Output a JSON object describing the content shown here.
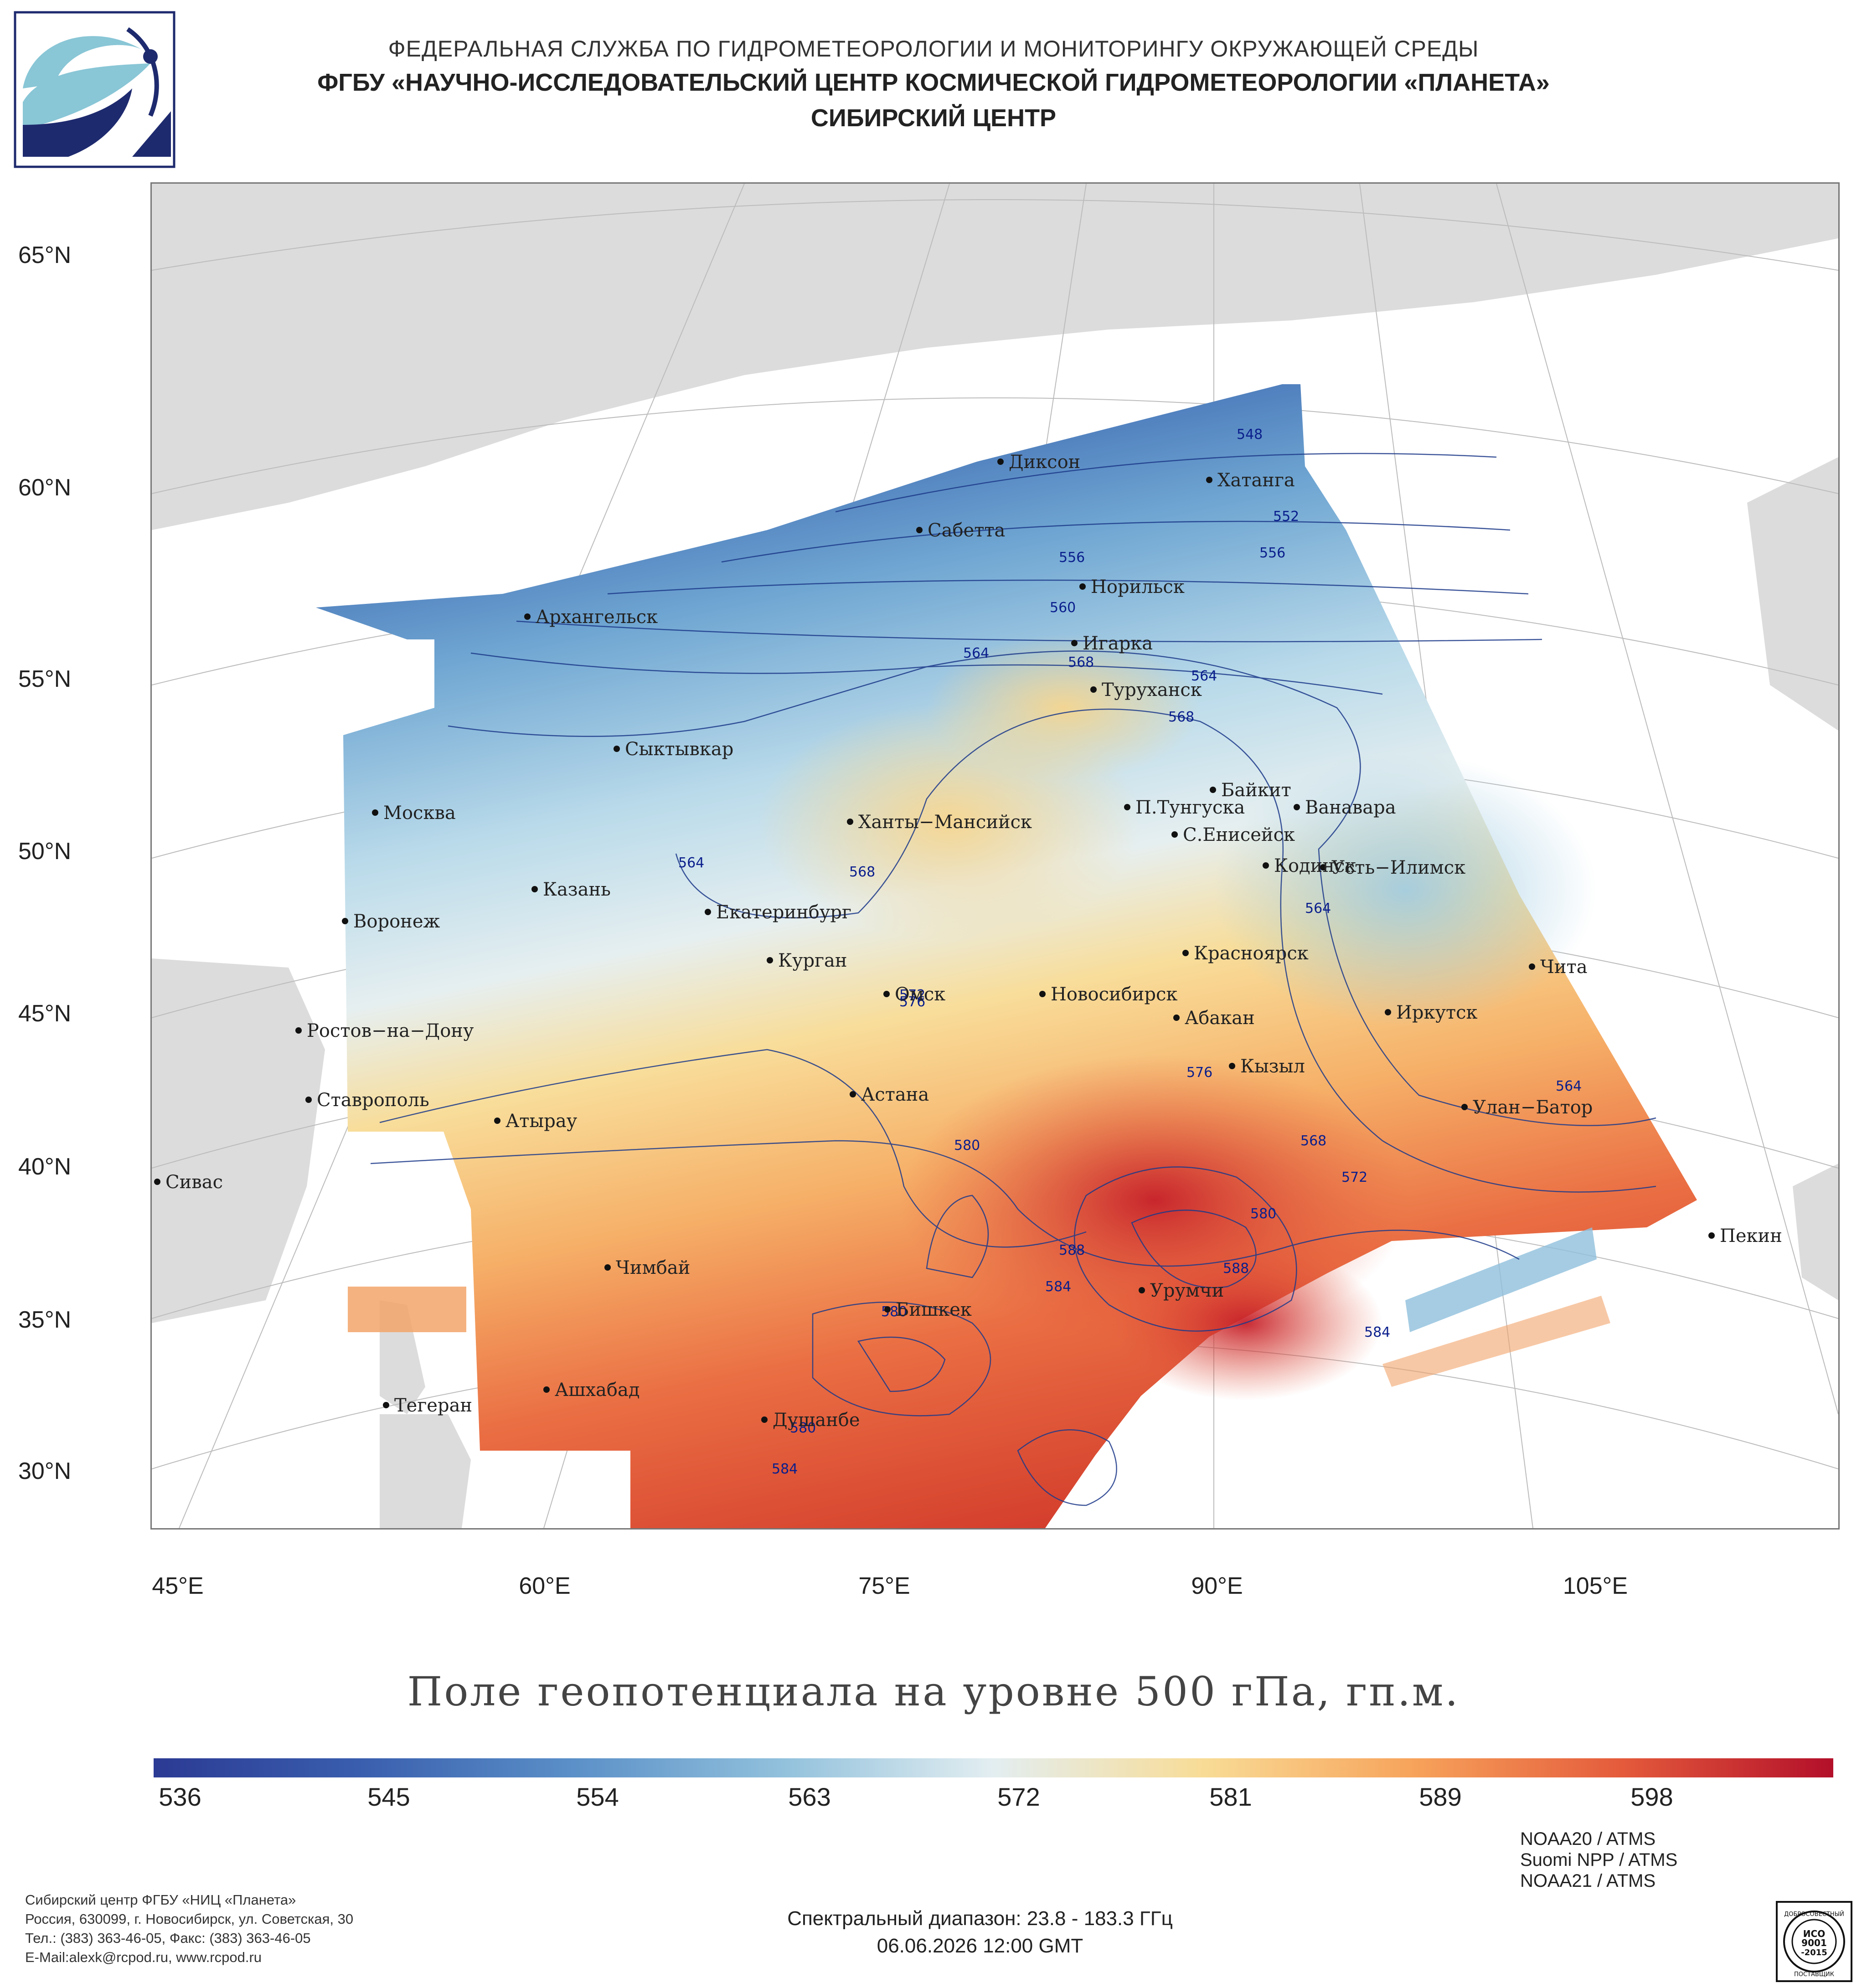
{
  "header": {
    "agency": "ФЕДЕРАЛЬНАЯ СЛУЖБА ПО ГИДРОМЕТЕОРОЛОГИИ И МОНИТОРИНГУ ОКРУЖАЮЩЕЙ СРЕДЫ",
    "institute": "ФГБУ «НАУЧНО-ИССЛЕДОВАТЕЛЬСКИЙ ЦЕНТР КОСМИЧЕСКОЙ ГИДРОМЕТЕОРОЛОГИИ «ПЛАНЕТА»",
    "center": "СИБИРСКИЙ ЦЕНТР"
  },
  "map": {
    "title": "Поле геопотенциала на уровне 500 гПа, гп.м.",
    "lat_labels": [
      "65°N",
      "60°N",
      "55°N",
      "50°N",
      "45°N",
      "40°N",
      "35°N",
      "30°N"
    ],
    "lon_labels": [
      "45°E",
      "60°E",
      "75°E",
      "90°E",
      "105°E"
    ],
    "cities": [
      {
        "name": "Диксон"
      },
      {
        "name": "Хатанга"
      },
      {
        "name": "Сабетта"
      },
      {
        "name": "Норильск"
      },
      {
        "name": "Архангельск"
      },
      {
        "name": "Игарка"
      },
      {
        "name": "Туруханск"
      },
      {
        "name": "Сыктывкар"
      },
      {
        "name": "Байкит"
      },
      {
        "name": "Москва"
      },
      {
        "name": "Ханты−Мансийск"
      },
      {
        "name": "П.Тунгуска"
      },
      {
        "name": "Ванавара"
      },
      {
        "name": "С.Енисейск"
      },
      {
        "name": "Кодинск"
      },
      {
        "name": "Усть−Илимск"
      },
      {
        "name": "Казань"
      },
      {
        "name": "Воронеж"
      },
      {
        "name": "Екатеринбург"
      },
      {
        "name": "Курган"
      },
      {
        "name": "Красноярск"
      },
      {
        "name": "Чита"
      },
      {
        "name": "Омск"
      },
      {
        "name": "Новосибирск"
      },
      {
        "name": "Ростов−на−Дону"
      },
      {
        "name": "Абакан"
      },
      {
        "name": "Иркутск"
      },
      {
        "name": "Кызыл"
      },
      {
        "name": "Ставрополь"
      },
      {
        "name": "Астана"
      },
      {
        "name": "Улан−Батор"
      },
      {
        "name": "Атырау"
      },
      {
        "name": "Сивас"
      },
      {
        "name": "Пекин"
      },
      {
        "name": "Чимбай"
      },
      {
        "name": "Урумчи"
      },
      {
        "name": "Бишкек"
      },
      {
        "name": "Тегеран"
      },
      {
        "name": "Ашхабад"
      },
      {
        "name": "Душанбе"
      }
    ],
    "contour_labels": [
      "548",
      "552",
      "556",
      "556",
      "560",
      "564",
      "568",
      "564",
      "568",
      "564",
      "568",
      "572",
      "564",
      "564",
      "576",
      "568",
      "572",
      "580",
      "580",
      "588",
      "584",
      "588",
      "584",
      "580",
      "580",
      "584",
      "576"
    ]
  },
  "colorbar": {
    "ticks": [
      "536",
      "545",
      "554",
      "563",
      "572",
      "581",
      "589",
      "598"
    ],
    "colors": [
      "#2b3a94",
      "#3a5fae",
      "#5b90c8",
      "#92c1dc",
      "#e3eef1",
      "#f8dc96",
      "#f7a35b",
      "#e45a3b",
      "#b30f2a"
    ]
  },
  "footer": {
    "org_lines": [
      "Сибирский центр ФГБУ «НИЦ «Планета»",
      "Россия, 630099, г. Новосибирск, ул. Советская, 30",
      "Тел.: (383) 363-46-05, Факс: (383) 363-46-05",
      "E-Mail:alexk@rcpod.ru, www.rcpod.ru"
    ],
    "spectral": "Спектральный диапазон: 23.8 - 183.3 ГГц",
    "datetime": "06.06.2026 12:00 GMT",
    "sensors": [
      "NOAA20 / ATMS",
      "Suomi NPP / ATMS",
      "NOAA21 / ATMS"
    ],
    "iso": {
      "top": "ДОБРОСОВЕСТНЫЙ",
      "mid1": "ИСО",
      "mid2": "9001",
      "mid3": "-2015",
      "bottom": "ПОСТАВЩИК"
    }
  }
}
